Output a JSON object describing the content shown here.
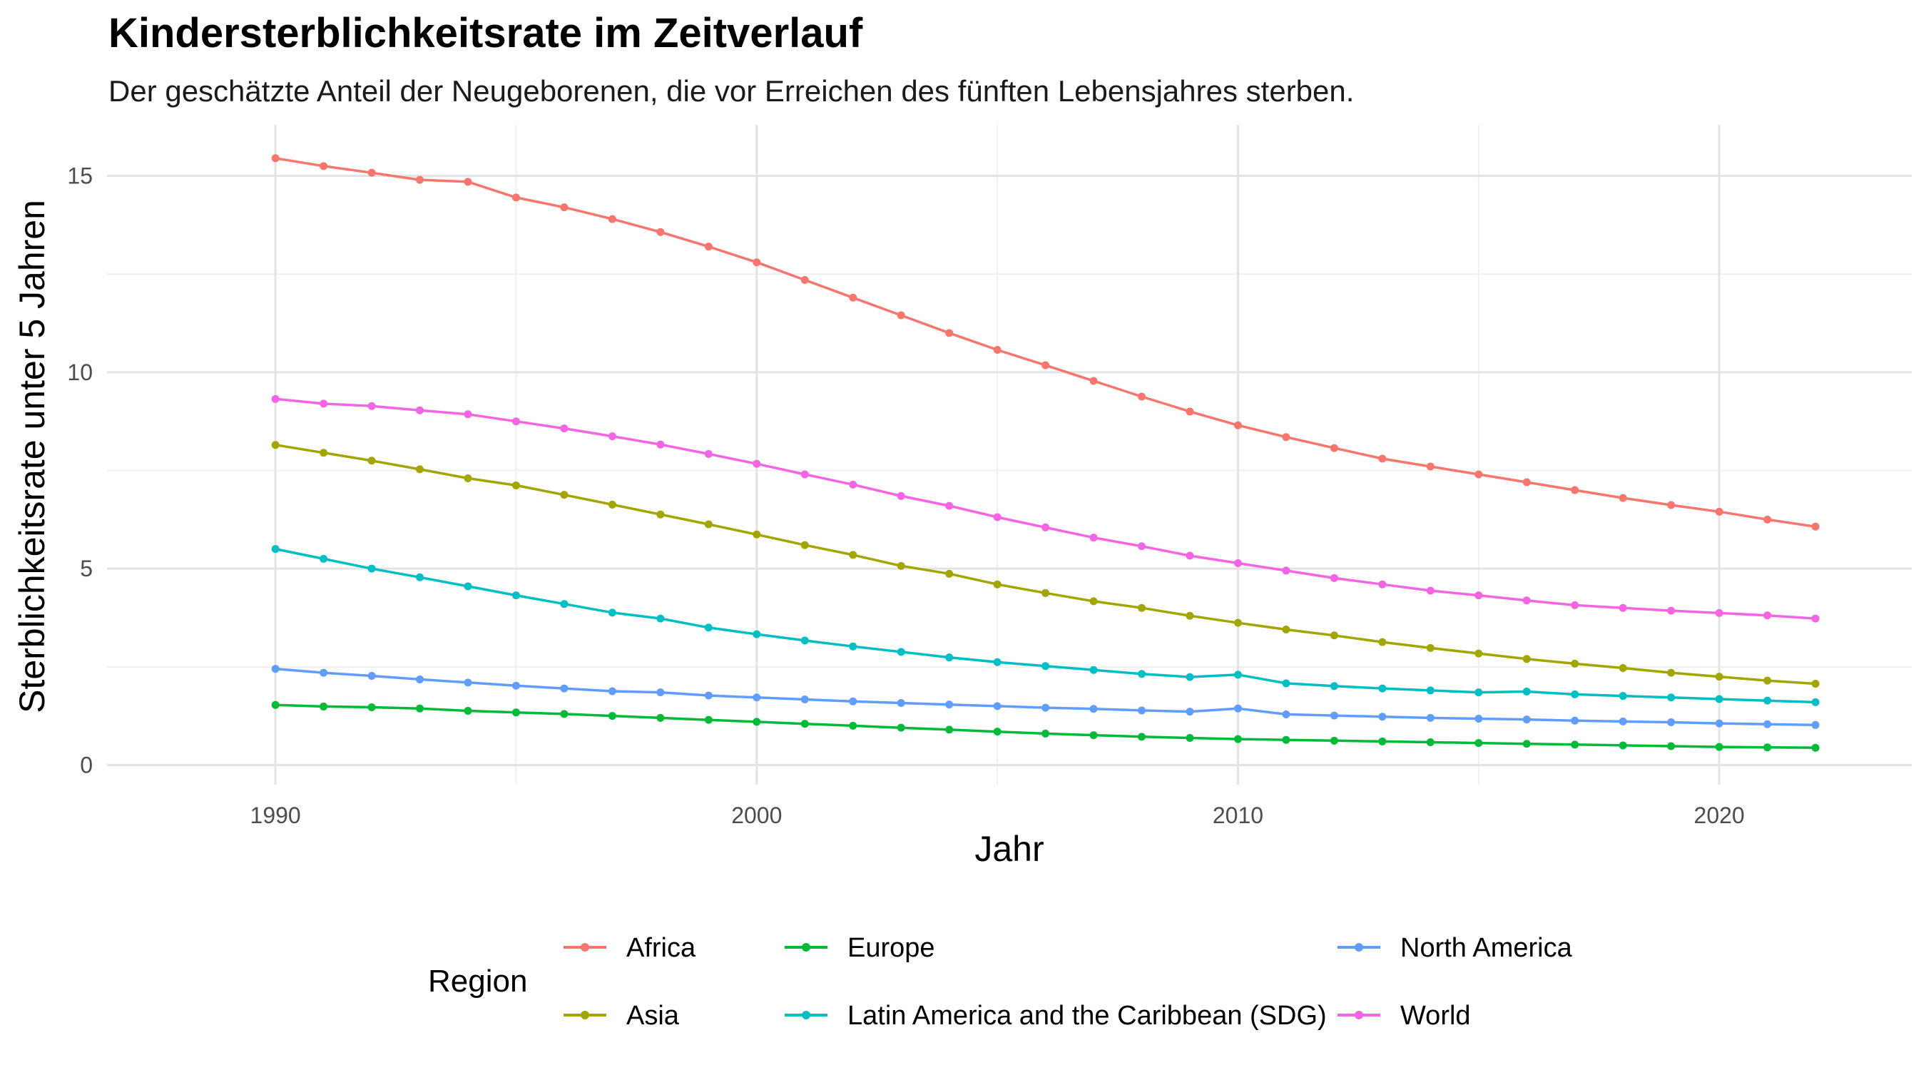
{
  "chart_data": {
    "type": "line",
    "title": "Kindersterblichkeitsrate im Zeitverlauf",
    "subtitle": "Der geschätzte Anteil der Neugeborenen, die vor Erreichen des fünften Lebensjahres sterben.",
    "xlabel": "Jahr",
    "ylabel": "Sterblichkeitsrate unter 5 Jahren",
    "xlim": [
      1986.5,
      2024
    ],
    "ylim": [
      -0.5,
      16.3
    ],
    "x_ticks": [
      1990,
      2000,
      2010,
      2020
    ],
    "y_ticks": [
      0,
      5,
      10,
      15
    ],
    "grid": true,
    "legend": {
      "title": "Region",
      "position": "bottom"
    },
    "x": [
      1990,
      1991,
      1992,
      1993,
      1994,
      1995,
      1996,
      1997,
      1998,
      1999,
      2000,
      2001,
      2002,
      2003,
      2004,
      2005,
      2006,
      2007,
      2008,
      2009,
      2010,
      2011,
      2012,
      2013,
      2014,
      2015,
      2016,
      2017,
      2018,
      2019,
      2020,
      2021,
      2022
    ],
    "series": [
      {
        "name": "Africa",
        "color": "#F8766D",
        "values": [
          15.45,
          15.25,
          15.08,
          14.9,
          14.85,
          14.45,
          14.2,
          13.9,
          13.57,
          13.2,
          12.8,
          12.35,
          11.9,
          11.45,
          11.0,
          10.57,
          10.18,
          9.78,
          9.38,
          9.0,
          8.65,
          8.35,
          8.07,
          7.8,
          7.6,
          7.4,
          7.2,
          7.0,
          6.8,
          6.62,
          6.45,
          6.25,
          6.07
        ]
      },
      {
        "name": "Asia",
        "color": "#A3A500",
        "values": [
          8.15,
          7.95,
          7.75,
          7.53,
          7.3,
          7.12,
          6.88,
          6.63,
          6.38,
          6.13,
          5.87,
          5.6,
          5.35,
          5.07,
          4.87,
          4.6,
          4.38,
          4.17,
          4.0,
          3.8,
          3.62,
          3.45,
          3.3,
          3.13,
          2.98,
          2.84,
          2.7,
          2.58,
          2.47,
          2.35,
          2.25,
          2.15,
          2.07
        ]
      },
      {
        "name": "Europe",
        "color": "#00BA38",
        "values": [
          1.53,
          1.49,
          1.47,
          1.44,
          1.38,
          1.34,
          1.3,
          1.25,
          1.2,
          1.15,
          1.1,
          1.05,
          1.0,
          0.95,
          0.9,
          0.85,
          0.8,
          0.76,
          0.72,
          0.69,
          0.66,
          0.64,
          0.62,
          0.6,
          0.58,
          0.56,
          0.54,
          0.52,
          0.5,
          0.48,
          0.46,
          0.45,
          0.44
        ]
      },
      {
        "name": "Latin America and the Caribbean (SDG)",
        "color": "#00BFC4",
        "values": [
          5.5,
          5.25,
          5.0,
          4.78,
          4.55,
          4.32,
          4.1,
          3.88,
          3.73,
          3.5,
          3.33,
          3.17,
          3.02,
          2.88,
          2.74,
          2.62,
          2.52,
          2.42,
          2.32,
          2.24,
          2.3,
          2.08,
          2.01,
          1.95,
          1.9,
          1.85,
          1.87,
          1.8,
          1.76,
          1.72,
          1.68,
          1.64,
          1.6
        ]
      },
      {
        "name": "North America",
        "color": "#619CFF",
        "values": [
          2.45,
          2.35,
          2.27,
          2.18,
          2.1,
          2.02,
          1.95,
          1.88,
          1.85,
          1.77,
          1.72,
          1.67,
          1.62,
          1.58,
          1.54,
          1.5,
          1.46,
          1.43,
          1.39,
          1.36,
          1.44,
          1.29,
          1.26,
          1.23,
          1.2,
          1.18,
          1.16,
          1.13,
          1.11,
          1.09,
          1.06,
          1.04,
          1.02
        ]
      },
      {
        "name": "World",
        "color": "#F564E3",
        "values": [
          9.32,
          9.2,
          9.14,
          9.03,
          8.93,
          8.75,
          8.57,
          8.37,
          8.16,
          7.92,
          7.67,
          7.4,
          7.14,
          6.85,
          6.6,
          6.31,
          6.05,
          5.79,
          5.57,
          5.33,
          5.14,
          4.95,
          4.76,
          4.6,
          4.44,
          4.32,
          4.19,
          4.07,
          4.0,
          3.93,
          3.87,
          3.81,
          3.73
        ]
      }
    ]
  },
  "legend_layout": [
    [
      "Africa",
      "Europe",
      "North America"
    ],
    [
      "Asia",
      "Latin America and the Caribbean (SDG)",
      "World"
    ]
  ]
}
